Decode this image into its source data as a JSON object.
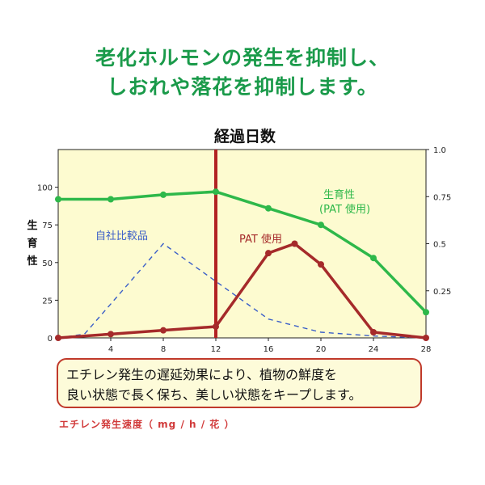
{
  "headline": {
    "line1": "老化ホルモンの発生を抑制し、",
    "line2": "しおれや落花を抑制します。"
  },
  "chart_data": {
    "type": "line",
    "title": "経過日数",
    "x_ticks": [
      "4",
      "8",
      "12",
      "16",
      "20",
      "24",
      "28"
    ],
    "xlim": [
      0,
      28
    ],
    "left_axis": {
      "label": "生育性",
      "ticks": [
        "0",
        "25",
        "50",
        "75",
        "100"
      ],
      "ylim": [
        0,
        125
      ]
    },
    "right_axis": {
      "ticks": [
        "0.25",
        "0.5",
        "0.75",
        "1.0"
      ],
      "ylim": [
        0,
        1.0
      ]
    },
    "grid": false,
    "background": "#fdfbd0",
    "marker_line": {
      "x": 12,
      "color": "#b22222"
    },
    "series": [
      {
        "name": "生育性",
        "name_line2": "(PAT 使用)",
        "axis": "left",
        "color": "#2eb84a",
        "style": "solid",
        "x": [
          0,
          4,
          8,
          12,
          16,
          20,
          24,
          28
        ],
        "y": [
          92,
          92,
          95,
          97,
          86,
          75,
          53,
          17
        ]
      },
      {
        "name": "自社比較品",
        "axis": "right",
        "color": "#3a5ec8",
        "style": "dashed",
        "x": [
          0,
          2,
          8,
          16,
          20,
          24,
          28
        ],
        "y": [
          0,
          0.02,
          0.5,
          0.1,
          0.03,
          0.01,
          0.0
        ]
      },
      {
        "name": "PAT 使用",
        "axis": "right",
        "color": "#a52a2a",
        "style": "solid",
        "x": [
          0,
          4,
          8,
          12,
          16,
          18,
          20,
          24,
          28
        ],
        "y": [
          0,
          0.02,
          0.04,
          0.06,
          0.45,
          0.5,
          0.39,
          0.03,
          0.0
        ]
      }
    ]
  },
  "note": {
    "line1": "エチレン発生の遅延効果により、植物の鮮度を",
    "line2": "良い状態で長く保ち、美しい状態をキープします。"
  },
  "footer": "エチレン発生速度（ mg / h / 花 ）"
}
